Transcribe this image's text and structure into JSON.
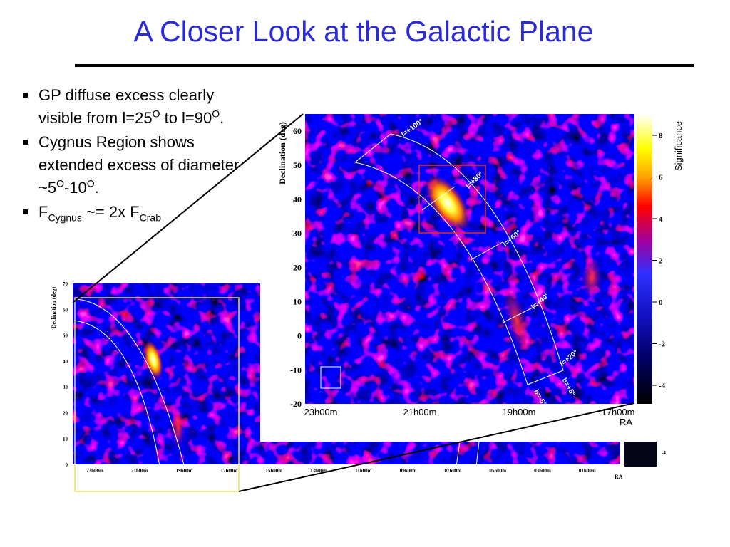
{
  "title": "A Closer Look at the Galactic Plane",
  "bullets": [
    {
      "parts": [
        {
          "text": "GP diffuse excess clearly visible from l=25"
        },
        {
          "text": "O",
          "sup": true
        },
        {
          "text": " to l=90"
        },
        {
          "text": "O",
          "sup": true
        },
        {
          "text": "."
        }
      ]
    },
    {
      "parts": [
        {
          "text": "Cygnus Region shows extended excess of diameter ~5"
        },
        {
          "text": "O",
          "sup": true
        },
        {
          "text": "-10"
        },
        {
          "text": "O",
          "sup": true
        },
        {
          "text": "."
        }
      ]
    },
    {
      "parts": [
        {
          "text": "F"
        },
        {
          "text": "Cygnus",
          "sub": true
        },
        {
          "text": " ~= 2x F"
        },
        {
          "text": "Crab",
          "sub": true
        }
      ]
    }
  ],
  "small_map": {
    "y_axis_title": "Declination (deg)",
    "y_tick_labels": [
      "70",
      "60",
      "50",
      "40",
      "30",
      "20",
      "10",
      "0"
    ],
    "x_tick_labels": [
      "23h00m",
      "21h00m",
      "19h00m",
      "17h00m",
      "15h00m",
      "13h00m",
      "11h00m",
      "09h00m",
      "07h00m",
      "05h00m",
      "03h00m",
      "01h00m"
    ],
    "x_axis_title": "RA",
    "colorbar_label": "-4"
  },
  "large_map": {
    "y_axis_title": "Declination (deg)",
    "y_tick_labels": [
      "60",
      "50",
      "40",
      "30",
      "20",
      "10",
      "0",
      "-10",
      "-20"
    ],
    "x_tick_labels": [
      "23h00m",
      "21h00m",
      "19h00m",
      "17h00m"
    ],
    "x_axis_title": "RA",
    "colorbar_title": "Significance",
    "colorbar_tick_labels": [
      "8",
      "6",
      "4",
      "2",
      "0",
      "-2",
      "-4"
    ],
    "band_labels": [
      "l=+100°",
      "l=+80°",
      "l=+60°",
      "l=+40°",
      "l=+20°",
      "b=+5°",
      "b=-5°"
    ]
  }
}
